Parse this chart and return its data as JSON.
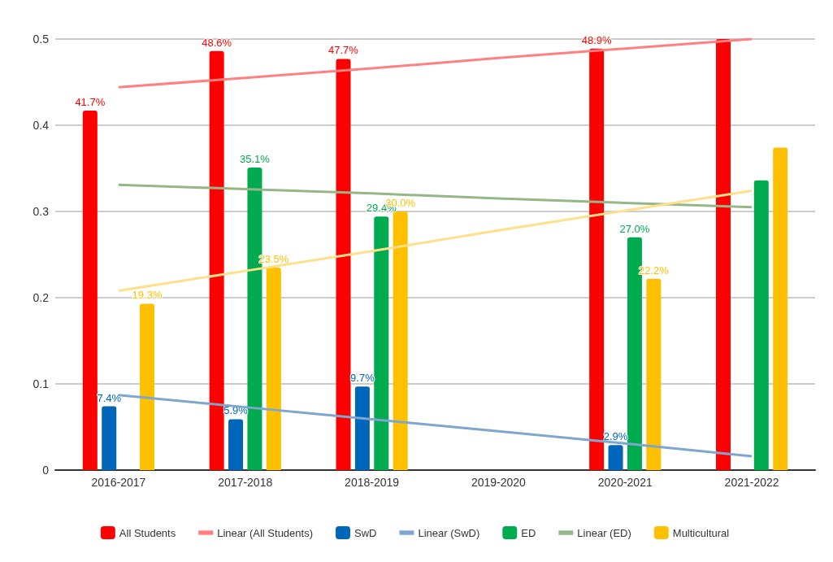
{
  "chart_data": {
    "type": "bar",
    "categories": [
      "2016-2017",
      "2017-2018",
      "2018-2019",
      "2019-2020",
      "2020-2021",
      "2021-2022"
    ],
    "series": [
      {
        "name": "All Students",
        "color": "#ff0000",
        "values": [
          0.417,
          0.486,
          0.477,
          null,
          0.489,
          0.5
        ],
        "value_labels": [
          "41.7%",
          "48.6%",
          "47.7%",
          null,
          "48.9%",
          null
        ]
      },
      {
        "name": "Linear (All Students)",
        "type": "line",
        "color": "#ff8080",
        "x": [
          "2016-2017",
          "2017-2018",
          "2018-2019",
          "2019-2020",
          "2020-2021",
          "2021-2022"
        ],
        "values": [
          0.444,
          0.455,
          0.466,
          0.478,
          0.489,
          0.5
        ]
      },
      {
        "name": "SwD",
        "color": "#0066bb",
        "values": [
          0.074,
          0.059,
          0.097,
          null,
          0.029,
          null
        ],
        "value_labels": [
          "7.4%",
          "5.9%",
          "9.7%",
          null,
          "2.9%",
          null
        ]
      },
      {
        "name": "Linear (SwD)",
        "type": "line",
        "color": "#7ea6cf",
        "x": [
          "2016-2017",
          "2017-2018",
          "2018-2019",
          "2019-2020",
          "2020-2021",
          "2021-2022"
        ],
        "values": [
          0.087,
          0.073,
          0.059,
          0.045,
          0.031,
          0.016
        ]
      },
      {
        "name": "ED",
        "color": "#00aa4f",
        "values": [
          null,
          0.351,
          0.294,
          null,
          0.27,
          0.336
        ],
        "value_labels": [
          null,
          "35.1%",
          "29.4%",
          null,
          "27.0%",
          null
        ]
      },
      {
        "name": "Linear (ED)",
        "type": "line",
        "color": "#93b886",
        "x": [
          "2016-2017",
          "2017-2018",
          "2018-2019",
          "2019-2020",
          "2020-2021",
          "2021-2022"
        ],
        "values": [
          0.331,
          0.326,
          0.321,
          0.315,
          0.31,
          0.305
        ]
      },
      {
        "name": "Multicultural",
        "color": "#ffc000",
        "values": [
          0.193,
          0.235,
          0.3,
          null,
          0.222,
          0.374
        ],
        "value_labels": [
          "19.3%",
          "23.5%",
          "30.0%",
          null,
          "22.2%",
          null
        ]
      },
      {
        "type": "line",
        "color": "#ffe08a",
        "x": [
          "2016-2017",
          "2017-2018",
          "2018-2019",
          "2019-2020",
          "2020-2021",
          "2021-2022"
        ],
        "values": [
          0.208,
          0.231,
          0.254,
          0.278,
          0.301,
          0.324
        ]
      }
    ],
    "ylim": [
      0,
      0.5
    ],
    "yticks": [
      0,
      0.1,
      0.2,
      0.3,
      0.4,
      0.5
    ],
    "grid": "y",
    "legend": "bottom",
    "marker": "none",
    "line_style": "solid"
  }
}
